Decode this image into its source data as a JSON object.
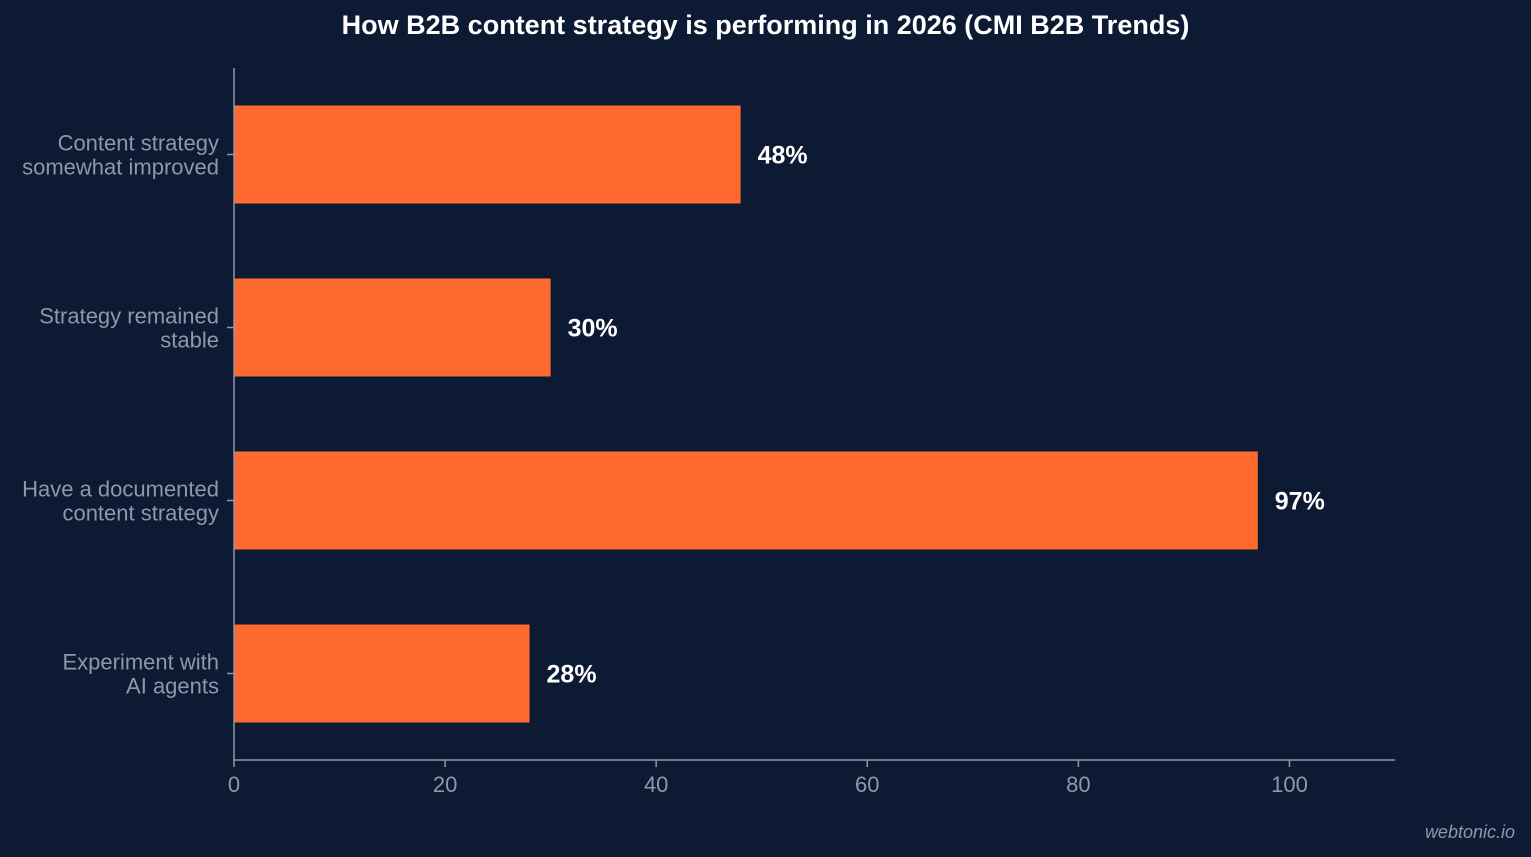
{
  "chart_data": {
    "type": "bar",
    "orientation": "horizontal",
    "title": "How B2B content strategy is performing in 2026 (CMI B2B Trends)",
    "xlabel": "",
    "ylabel": "",
    "xlim": [
      0,
      110
    ],
    "x_ticks": [
      "0",
      "20",
      "40",
      "60",
      "80",
      "100"
    ],
    "categories": [
      [
        "Content strategy",
        "somewhat improved"
      ],
      [
        "Strategy remained",
        "stable"
      ],
      [
        "Have a documented",
        "content strategy"
      ],
      [
        "Experiment with",
        "AI agents"
      ]
    ],
    "values": [
      48,
      30,
      97,
      28
    ],
    "data_labels": [
      "48%",
      "30%",
      "97%",
      "28%"
    ],
    "bar_color": "#ff6b2f",
    "grid": false,
    "legend": "none"
  },
  "colors": {
    "background": "#0c1a33",
    "axis": "#8f98a8",
    "tick_text": "#8f98a8",
    "data_label": "#ffffff"
  },
  "watermark": "webtonic.io"
}
